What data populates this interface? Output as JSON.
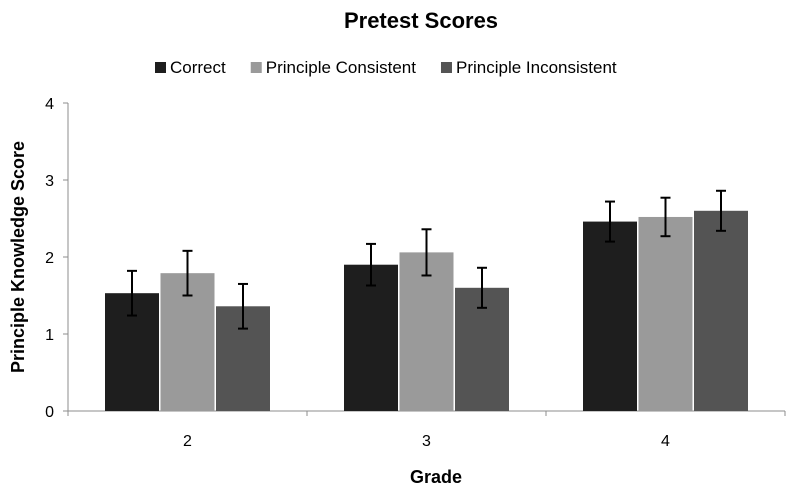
{
  "chart_data": {
    "type": "bar",
    "title": "Pretest Scores",
    "xlabel": "Grade",
    "ylabel": "Principle Knowledge Score",
    "categories": [
      "2",
      "3",
      "4"
    ],
    "yticks": [
      "0",
      "1",
      "2",
      "3",
      "4"
    ],
    "ylim": [
      0,
      4
    ],
    "legend_position": "top",
    "grid": false,
    "error_bars": true,
    "series": [
      {
        "name": "Correct",
        "color": "#1e1e1e",
        "values": [
          1.53,
          1.9,
          2.46
        ],
        "errors": [
          0.29,
          0.27,
          0.26
        ]
      },
      {
        "name": "Principle Consistent",
        "color": "#9a9a9a",
        "values": [
          1.79,
          2.06,
          2.52
        ],
        "errors": [
          0.29,
          0.3,
          0.25
        ]
      },
      {
        "name": "Principle Inconsistent",
        "color": "#545454",
        "values": [
          1.36,
          1.6,
          2.6
        ],
        "errors": [
          0.29,
          0.26,
          0.26
        ]
      }
    ]
  }
}
